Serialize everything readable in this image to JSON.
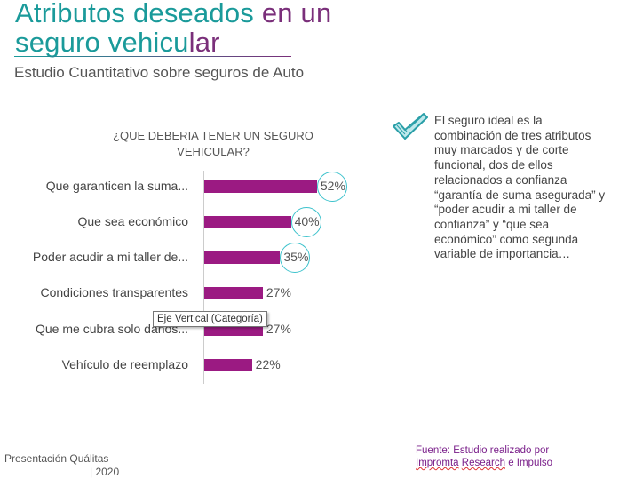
{
  "title": {
    "part1": "Atributos deseados ",
    "part2": "en un",
    "part3": "seguro vehicu",
    "part4": "lar"
  },
  "subtitle": "Estudio Cuantitativo sobre seguros de Auto",
  "chart_data": {
    "type": "bar",
    "title": "¿QUE DEBERIA TENER UN SEGURO VEHICULAR?",
    "categories": [
      "Que garanticen la suma...",
      "Que sea económico",
      "Poder acudir a mi taller de...",
      "Condiciones transparentes",
      "Que me cubra solo daños...",
      "Vehículo de reemplazo"
    ],
    "values": [
      52,
      40,
      35,
      27,
      27,
      22
    ],
    "labels": [
      "52%",
      "40%",
      "35%",
      "27%",
      "27%",
      "22%"
    ],
    "highlighted": [
      true,
      true,
      true,
      false,
      false,
      false
    ],
    "xlim": [
      0,
      100
    ],
    "bar_color": "#9b1a82"
  },
  "tooltip": "Eje Vertical (Categoría)",
  "insight": "El seguro ideal es la combinación de tres atributos muy marcados y de corte funcional, dos de ellos relacionados a confianza “garantía de suma asegurada” y “poder acudir a mi taller de confianza” y “que sea económico” como segunda variable de importancia…",
  "footer": {
    "left1": "Presentación Quálitas",
    "left2": "| 2020",
    "source1": "Fuente: Estudio realizado por",
    "source2a": "Impromta",
    "source2b": "Research",
    "source2c": " e Impulso"
  }
}
